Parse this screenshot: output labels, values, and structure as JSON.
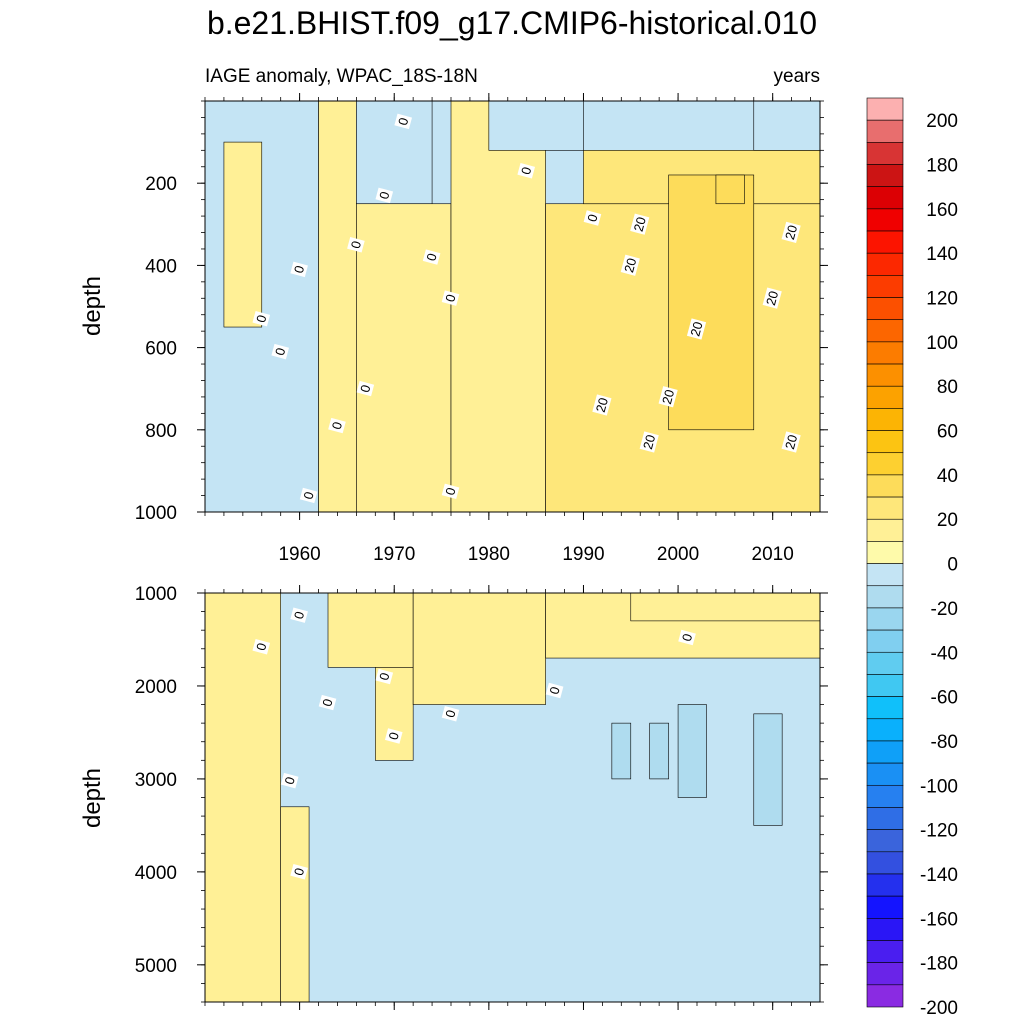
{
  "chart_data": {
    "type": "heatmap",
    "title": "b.e21.BHIST.f09_g17.CMIP6-historical.010",
    "subtitle_left": "IAGE anomaly, WPAC_18S-18N",
    "subtitle_right": "years",
    "xlim": [
      1950,
      2015
    ],
    "x_ticks": [
      1960,
      1970,
      1980,
      1990,
      2000,
      2010
    ],
    "x_tick_labels": [
      "1960",
      "1970",
      "1980",
      "1990",
      "2000",
      "2010"
    ],
    "panels": [
      {
        "name": "upper",
        "ylabel": "depth",
        "ylim": [
          0,
          1000
        ],
        "y_ticks": [
          200,
          400,
          600,
          800,
          1000
        ],
        "y_tick_labels": [
          "200",
          "400",
          "600",
          "800",
          "1000"
        ],
        "show_x_labels": true,
        "cells": [
          {
            "x0": 1950,
            "x1": 1962,
            "y0": 0,
            "y1": 1000,
            "level": -10
          },
          {
            "x0": 1952,
            "x1": 1956,
            "y0": 100,
            "y1": 550,
            "level": 10
          },
          {
            "x0": 1962,
            "x1": 1966,
            "y0": 0,
            "y1": 1000,
            "level": 10
          },
          {
            "x0": 1966,
            "x1": 1974,
            "y0": 0,
            "y1": 250,
            "level": -10
          },
          {
            "x0": 1966,
            "x1": 1976,
            "y0": 250,
            "y1": 1000,
            "level": 10
          },
          {
            "x0": 1976,
            "x1": 1986,
            "y0": 0,
            "y1": 1000,
            "level": 10
          },
          {
            "x0": 1980,
            "x1": 1990,
            "y0": 0,
            "y1": 120,
            "level": -10
          },
          {
            "x0": 1986,
            "x1": 2015,
            "y0": 250,
            "y1": 1000,
            "level": 20
          },
          {
            "x0": 1990,
            "x1": 2015,
            "y0": 120,
            "y1": 250,
            "level": 20
          },
          {
            "x0": 1999,
            "x1": 2008,
            "y0": 180,
            "y1": 800,
            "level": 30
          },
          {
            "x0": 2004,
            "x1": 2007,
            "y0": 180,
            "y1": 250,
            "level": 35
          },
          {
            "x0": 2008,
            "x1": 2015,
            "y0": 0,
            "y1": 120,
            "level": -10
          }
        ],
        "contour_labels": [
          {
            "x": 1961,
            "y": 960,
            "text": "0"
          },
          {
            "x": 1960,
            "y": 410,
            "text": "0"
          },
          {
            "x": 1956,
            "y": 530,
            "text": "0"
          },
          {
            "x": 1958,
            "y": 610,
            "text": "0"
          },
          {
            "x": 1964,
            "y": 790,
            "text": "0"
          },
          {
            "x": 1966,
            "y": 350,
            "text": "0"
          },
          {
            "x": 1967,
            "y": 700,
            "text": "0"
          },
          {
            "x": 1969,
            "y": 230,
            "text": "0"
          },
          {
            "x": 1971,
            "y": 50,
            "text": "0"
          },
          {
            "x": 1974,
            "y": 380,
            "text": "0"
          },
          {
            "x": 1976,
            "y": 480,
            "text": "0"
          },
          {
            "x": 1976,
            "y": 950,
            "text": "0"
          },
          {
            "x": 1984,
            "y": 170,
            "text": "0"
          },
          {
            "x": 1991,
            "y": 285,
            "text": "0"
          },
          {
            "x": 1992,
            "y": 740,
            "text": "20"
          },
          {
            "x": 1995,
            "y": 400,
            "text": "20"
          },
          {
            "x": 1996,
            "y": 300,
            "text": "20"
          },
          {
            "x": 1997,
            "y": 830,
            "text": "20"
          },
          {
            "x": 1999,
            "y": 720,
            "text": "20"
          },
          {
            "x": 2002,
            "y": 555,
            "text": "20"
          },
          {
            "x": 2010,
            "y": 480,
            "text": "20"
          },
          {
            "x": 2012,
            "y": 320,
            "text": "20"
          },
          {
            "x": 2012,
            "y": 830,
            "text": "20"
          }
        ]
      },
      {
        "name": "lower",
        "ylabel": "depth",
        "ylim": [
          1000,
          5400
        ],
        "y_ticks": [
          1000,
          2000,
          3000,
          4000,
          5000
        ],
        "y_tick_labels": [
          "1000",
          "2000",
          "3000",
          "4000",
          "5000"
        ],
        "show_x_labels": false,
        "cells": [
          {
            "x0": 1950,
            "x1": 2015,
            "y0": 1000,
            "y1": 5400,
            "level": -10
          },
          {
            "x0": 1950,
            "x1": 1958,
            "y0": 1000,
            "y1": 5400,
            "level": 10
          },
          {
            "x0": 1958,
            "x1": 1961,
            "y0": 3300,
            "y1": 5400,
            "level": 10
          },
          {
            "x0": 1963,
            "x1": 1972,
            "y0": 1000,
            "y1": 1800,
            "level": 10
          },
          {
            "x0": 1968,
            "x1": 1972,
            "y0": 1800,
            "y1": 2800,
            "level": 10
          },
          {
            "x0": 1972,
            "x1": 1986,
            "y0": 1000,
            "y1": 2200,
            "level": 10
          },
          {
            "x0": 1986,
            "x1": 2015,
            "y0": 1000,
            "y1": 1700,
            "level": 10
          },
          {
            "x0": 1995,
            "x1": 2015,
            "y0": 1000,
            "y1": 1300,
            "level": 10
          },
          {
            "x0": 1993,
            "x1": 1995,
            "y0": 2400,
            "y1": 3000,
            "level": -20
          },
          {
            "x0": 1997,
            "x1": 1999,
            "y0": 2400,
            "y1": 3000,
            "level": -20
          },
          {
            "x0": 2000,
            "x1": 2003,
            "y0": 2200,
            "y1": 3200,
            "level": -20
          },
          {
            "x0": 2008,
            "x1": 2011,
            "y0": 2300,
            "y1": 3500,
            "level": -20
          }
        ],
        "contour_labels": [
          {
            "x": 1956,
            "y": 1580,
            "text": "0"
          },
          {
            "x": 1960,
            "y": 1240,
            "text": "0"
          },
          {
            "x": 1960,
            "y": 4000,
            "text": "0"
          },
          {
            "x": 1959,
            "y": 3020,
            "text": "0"
          },
          {
            "x": 1963,
            "y": 2180,
            "text": "0"
          },
          {
            "x": 1969,
            "y": 1900,
            "text": "0"
          },
          {
            "x": 1970,
            "y": 2540,
            "text": "0"
          },
          {
            "x": 1976,
            "y": 2300,
            "text": "0"
          },
          {
            "x": 1987,
            "y": 2050,
            "text": "0"
          },
          {
            "x": 2001,
            "y": 1480,
            "text": "0"
          }
        ]
      }
    ],
    "colorbar": {
      "levels": [
        -200,
        -190,
        -180,
        -170,
        -160,
        -150,
        -140,
        -130,
        -120,
        -110,
        -100,
        -90,
        -80,
        -70,
        -60,
        -50,
        -40,
        -30,
        -20,
        -10,
        0,
        10,
        20,
        30,
        40,
        50,
        60,
        70,
        80,
        90,
        100,
        110,
        120,
        130,
        140,
        150,
        160,
        170,
        180,
        190,
        200
      ],
      "colors": [
        "#8a2be2",
        "#6a24e8",
        "#4a1ef0",
        "#2a16f6",
        "#1414ff",
        "#2430ee",
        "#3350e0",
        "#3a64dc",
        "#2f6ee6",
        "#2680f0",
        "#1a90f4",
        "#0fa0f8",
        "#0ab0fc",
        "#10c0fa",
        "#40c8f2",
        "#60ccf0",
        "#80cff0",
        "#9ad6ef",
        "#afdcef",
        "#c4e4f4",
        "#fefaaa",
        "#fff096",
        "#fee77a",
        "#fddc5a",
        "#fdd030",
        "#fcc412",
        "#fcb404",
        "#fca200",
        "#fc9000",
        "#fc7c00",
        "#fc6600",
        "#fc5000",
        "#fc3c00",
        "#fc2800",
        "#fc1400",
        "#f00000",
        "#dc0004",
        "#cc1414",
        "#d83434",
        "#e86e6e",
        "#fcb0b0"
      ],
      "tick_labels": [
        "200",
        "180",
        "160",
        "140",
        "120",
        "100",
        "80",
        "60",
        "40",
        "20",
        "0",
        "-20",
        "-40",
        "-60",
        "-80",
        "-100",
        "-120",
        "-140",
        "-160",
        "-180",
        "-200"
      ],
      "tick_values": [
        200,
        180,
        160,
        140,
        120,
        100,
        80,
        60,
        40,
        20,
        0,
        -20,
        -40,
        -60,
        -80,
        -100,
        -120,
        -140,
        -160,
        -180,
        -200
      ]
    }
  }
}
